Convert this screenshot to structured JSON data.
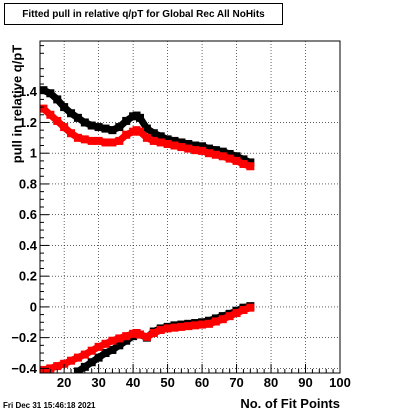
{
  "chart_data": {
    "type": "line",
    "title": "Fitted pull in relative q/pT for Global Rec All NoHits",
    "xlabel": "No. of Fit Points",
    "ylabel": "pull in relative q/pT",
    "xlim": [
      13,
      100
    ],
    "ylim": [
      -0.43,
      1.73
    ],
    "grid": true,
    "xticks": [
      20,
      30,
      40,
      50,
      60,
      70,
      80,
      90,
      100
    ],
    "yticks": [
      -0.4,
      -0.2,
      0,
      0.2,
      0.4,
      0.6,
      0.8,
      1,
      1.2,
      1.4
    ],
    "ytick_labels": [
      "−0.4",
      "−0.2",
      "0",
      "0.2",
      "0.4",
      "0.6",
      "0.8",
      "1",
      "1.2",
      "1.4"
    ],
    "series": [
      {
        "color": "#000000",
        "x": [
          14,
          16,
          18,
          20,
          22,
          24,
          26,
          28,
          30,
          32,
          34,
          36,
          38,
          40,
          41,
          42,
          44,
          46,
          48,
          50,
          52,
          54,
          56,
          58,
          60,
          62,
          64,
          66,
          68,
          70,
          72,
          74
        ],
        "y": [
          1.41,
          1.39,
          1.35,
          1.3,
          1.26,
          1.23,
          1.2,
          1.18,
          1.17,
          1.16,
          1.15,
          1.17,
          1.21,
          1.24,
          1.245,
          1.23,
          1.16,
          1.13,
          1.11,
          1.09,
          1.08,
          1.07,
          1.06,
          1.05,
          1.045,
          1.03,
          1.02,
          1.01,
          0.995,
          0.98,
          0.96,
          0.94
        ]
      },
      {
        "color": "#ff0000",
        "x": [
          14,
          16,
          18,
          20,
          22,
          24,
          26,
          28,
          30,
          32,
          34,
          36,
          38,
          40,
          41,
          42,
          44,
          46,
          48,
          50,
          52,
          54,
          56,
          58,
          60,
          62,
          64,
          66,
          68,
          70,
          72,
          74
        ],
        "y": [
          1.29,
          1.25,
          1.21,
          1.17,
          1.13,
          1.1,
          1.09,
          1.08,
          1.08,
          1.07,
          1.07,
          1.08,
          1.12,
          1.14,
          1.15,
          1.14,
          1.1,
          1.08,
          1.07,
          1.06,
          1.05,
          1.04,
          1.03,
          1.02,
          1.015,
          1.0,
          0.99,
          0.98,
          0.965,
          0.95,
          0.93,
          0.915
        ]
      },
      {
        "color": "#000000",
        "x": [
          24,
          26,
          28,
          30,
          32,
          34,
          36,
          38,
          40,
          41,
          42,
          44,
          46,
          48,
          50,
          52,
          54,
          56,
          58,
          60,
          62,
          64,
          66,
          68,
          70,
          72,
          74
        ],
        "y": [
          -0.42,
          -0.39,
          -0.36,
          -0.33,
          -0.3,
          -0.28,
          -0.25,
          -0.22,
          -0.19,
          -0.17,
          -0.18,
          -0.2,
          -0.16,
          -0.14,
          -0.13,
          -0.12,
          -0.115,
          -0.11,
          -0.105,
          -0.1,
          -0.09,
          -0.075,
          -0.06,
          -0.045,
          -0.025,
          -0.005,
          0.005
        ]
      },
      {
        "color": "#ff0000",
        "x": [
          14,
          16,
          18,
          20,
          22,
          24,
          26,
          28,
          30,
          32,
          34,
          36,
          38,
          40,
          41,
          42,
          44,
          46,
          48,
          50,
          52,
          54,
          56,
          58,
          60,
          62,
          64,
          66,
          68,
          70,
          72,
          74
        ],
        "y": [
          -0.41,
          -0.4,
          -0.385,
          -0.37,
          -0.35,
          -0.33,
          -0.31,
          -0.285,
          -0.26,
          -0.24,
          -0.22,
          -0.205,
          -0.19,
          -0.175,
          -0.17,
          -0.18,
          -0.195,
          -0.17,
          -0.15,
          -0.14,
          -0.135,
          -0.13,
          -0.125,
          -0.12,
          -0.115,
          -0.11,
          -0.095,
          -0.08,
          -0.06,
          -0.04,
          -0.02,
          -0.005
        ]
      }
    ]
  },
  "footer": {
    "timestamp": "Fri Dec 31 15:46:18 2021"
  }
}
